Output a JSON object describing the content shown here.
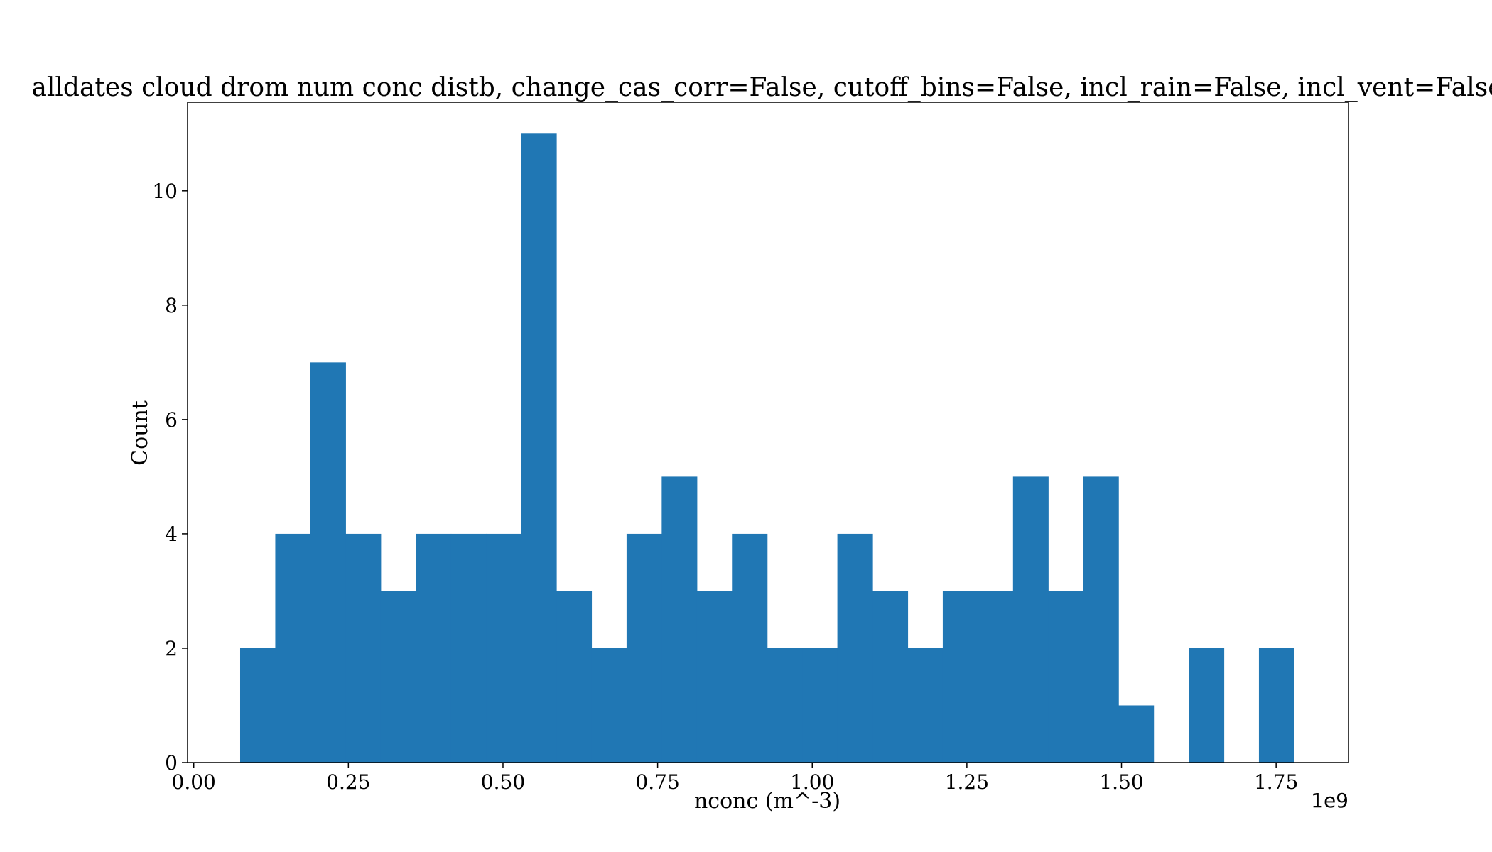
{
  "chart_data": {
    "type": "bar",
    "title": "alldates cloud drom num conc distb, change_cas_corr=False, cutoff_bins=False, incl_rain=False, incl_vent=False",
    "xlabel": "nconc (m^-3)",
    "ylabel": "Count",
    "x_offset_label": "1e9",
    "bar_color": "#2077b4",
    "bin_start": 0.075,
    "bin_width": 0.0568,
    "counts": [
      2,
      4,
      7,
      4,
      3,
      4,
      4,
      4,
      11,
      3,
      2,
      4,
      5,
      3,
      4,
      2,
      2,
      4,
      3,
      2,
      3,
      3,
      5,
      3,
      5,
      1,
      0,
      2,
      0,
      2
    ],
    "xlim": [
      -0.01,
      1.867
    ],
    "ylim": [
      0,
      11.55
    ],
    "x_ticks": [
      {
        "value": 0.0,
        "label": "0.00"
      },
      {
        "value": 0.25,
        "label": "0.25"
      },
      {
        "value": 0.5,
        "label": "0.50"
      },
      {
        "value": 0.75,
        "label": "0.75"
      },
      {
        "value": 1.0,
        "label": "1.00"
      },
      {
        "value": 1.25,
        "label": "1.25"
      },
      {
        "value": 1.5,
        "label": "1.50"
      },
      {
        "value": 1.75,
        "label": "1.75"
      }
    ],
    "y_ticks": [
      {
        "value": 0,
        "label": "0"
      },
      {
        "value": 2,
        "label": "2"
      },
      {
        "value": 4,
        "label": "4"
      },
      {
        "value": 6,
        "label": "6"
      },
      {
        "value": 8,
        "label": "8"
      },
      {
        "value": 10,
        "label": "10"
      }
    ],
    "grid": false,
    "legend": "none"
  }
}
